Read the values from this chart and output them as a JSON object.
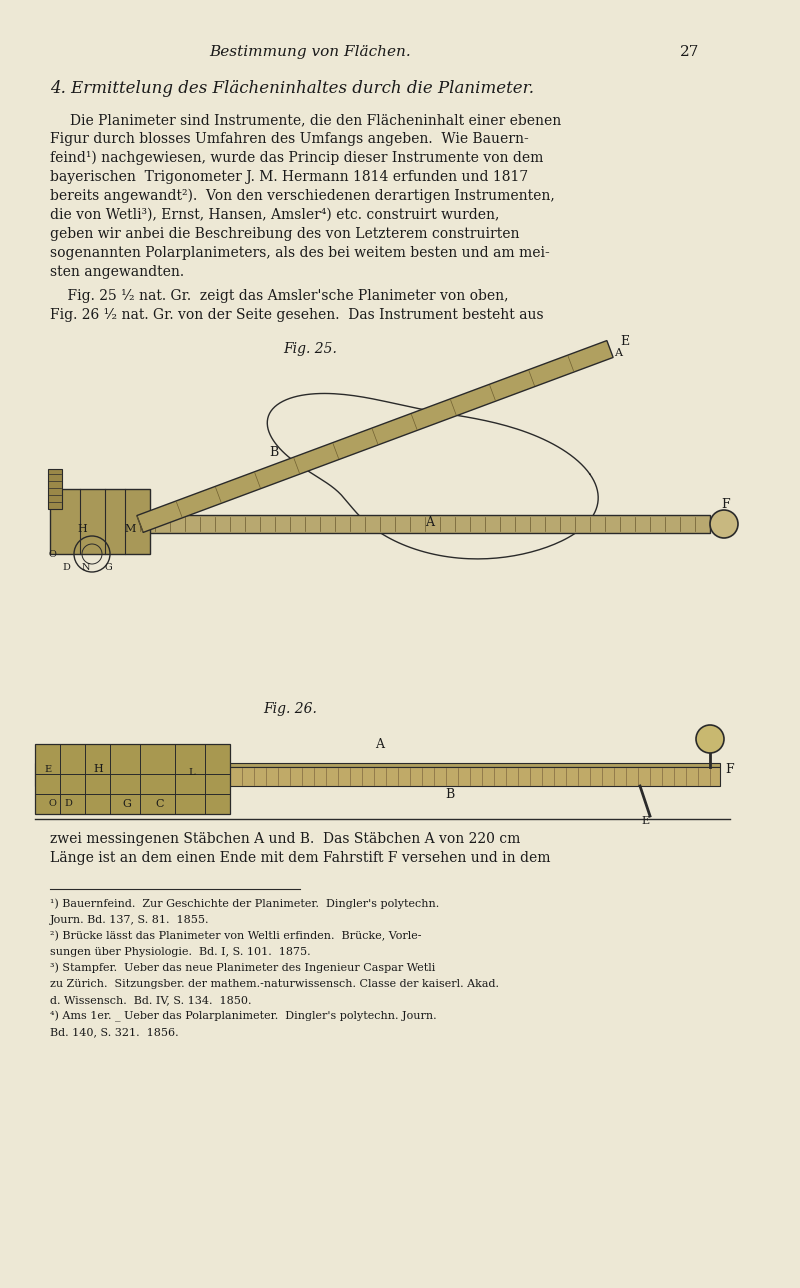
{
  "background_color": "#EDE8D5",
  "page_width": 8.0,
  "page_height": 12.88,
  "header_text": "Bestimmung von Flächen.",
  "header_page_num": "27",
  "section_title": "4. Ermittelung des Flächeninhaltes durch die Planimeter.",
  "paragraph1": "Die Planimeter sind Instrumente, die den Flächeninhalt einer ebenen\nFigur durch blosses Umfahren des Umfangs angeben.  Wie Bauern-\nfeind¹) nachgewiesen, wurde das Princip dieser Instrumente von dem\nbayerischen  Trigonometer J. M. Hermann 1814 erfunden und 1817\nbereichs angewandt²).  Von den verschiedenen derartigen Instrumenten,\ndie von Wetli³), Ernst, Hansen, Amsler⁴) etc. construirt wurden,\ngeben wir anbei die Beschreibung des von Letzterem construirten\nsogenannten Polarplanimeters, als des bei weitem besten und am mei-\nsten angewandten.",
  "paragraph2": "Fig. 25 ¹⁄₂ nat. Gr.  zeigt das Amsler'sche Planimeter von oben,\nFig. 26 ¹⁄₂ nat. Gr. von der Seite gesehen.  Das Instrument besteht aus",
  "fig25_caption": "Fig. 25.",
  "fig26_caption": "Fig. 26.",
  "bottom_paragraph": "zwei messingenen Stäbchen A und B.  Das Stäbchen A von 220 cm\nLänge ist an dem einen Ende mit dem Fahrstift F versehen und in dem",
  "footnote1": "¹) Bauernfeind.  Zur Geschichte der Planimeter.  Dingler's polytechn.\nJourn. Bd. 137, S. 81.  1855.",
  "footnote2": "²) Brücke lässt das Planimeter von Weltli erfinden.  Brücke, Vorle-\nsungen über Physiologie.  Bd. I, S. 101.  1875.",
  "footnote3": "³) Stampfer.  Ueber das neue Planimeter des Ingenieur Caspar Wetli\nzu Zürich.  Sitzungsber. der mathem.-naturwissensch. Classe der kaiserl. Akad.\nd. Wissensch.  Bd. IV, S. 134.  1850.",
  "footnote4": "⁴) Ams 1er. _ Ueber das Polarplanimeter.  Dingler's polytechn. Journ.\nBd. 140, S. 321.  1856.",
  "text_color": "#1a1a1a",
  "line_color": "#2a2a2a"
}
